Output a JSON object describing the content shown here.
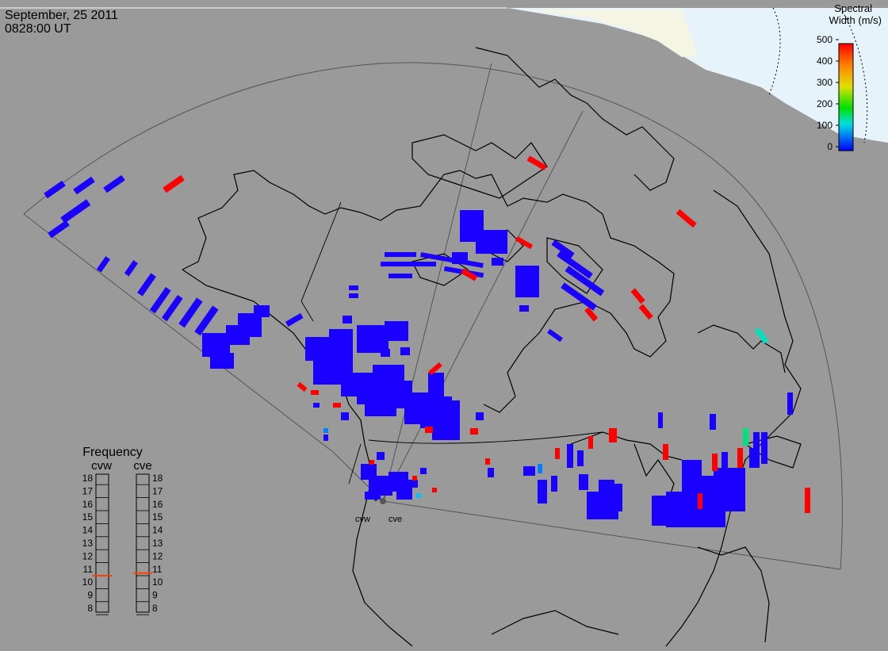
{
  "header": {
    "date": "September, 25 2011",
    "time": "0828:00 UT"
  },
  "colorbar": {
    "title_line1": "Spectral",
    "title_line2": "Width (m/s)",
    "ticks": [
      "500",
      "400",
      "300",
      "200",
      "100",
      "0"
    ],
    "stops": [
      "#ff0000",
      "#ff8000",
      "#ffff00",
      "#00ff00",
      "#00ffff",
      "#0000ff"
    ]
  },
  "frequency_panel": {
    "title": "Frequency",
    "left_radar": "cvw",
    "right_radar": "cve",
    "levels": [
      "18",
      "17",
      "16",
      "15",
      "14",
      "13",
      "12",
      "11",
      "10",
      "9",
      "8"
    ],
    "cvw_value_mhz": 10.5,
    "cve_value_mhz": 10.7,
    "marker_color": "#ff4000"
  },
  "radars": {
    "west_label": "cvw",
    "east_label": "cve"
  },
  "colors": {
    "background": "#9a9a9a",
    "polar_sea": "#e8f4fc",
    "greenland": "#f6f6e6",
    "low_width": "#1a00ff",
    "high_width": "#ff0000",
    "mid_width": "#00e0d0"
  }
}
